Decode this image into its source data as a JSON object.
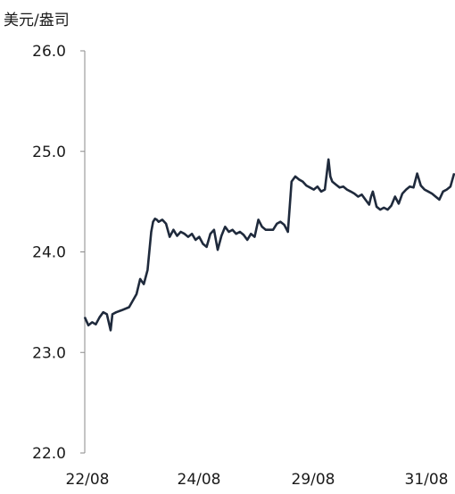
{
  "chart_data": {
    "type": "line",
    "title": "",
    "unit_label": "美元/盎司",
    "xlabel": "",
    "ylabel": "美元/盎司",
    "ylim": [
      22.0,
      26.0
    ],
    "y_ticks": [
      "26.0",
      "25.0",
      "24.0",
      "23.0",
      "22.0"
    ],
    "x_tick_labels": [
      "22/08",
      "24/08",
      "29/08",
      "31/08"
    ],
    "x_tick_positions": [
      0,
      0.33,
      0.67,
      1.0
    ],
    "grid": false,
    "line_color": "#1f2a3c",
    "series": [
      {
        "x": [
          0.0,
          0.01,
          0.02,
          0.03,
          0.04,
          0.05,
          0.06,
          0.07,
          0.075,
          0.085,
          0.1,
          0.12,
          0.14,
          0.15,
          0.16,
          0.17,
          0.18,
          0.185,
          0.19,
          0.195,
          0.2,
          0.21,
          0.22,
          0.23,
          0.24,
          0.25,
          0.26,
          0.27,
          0.28,
          0.29,
          0.3,
          0.31,
          0.32,
          0.33,
          0.34,
          0.35,
          0.36,
          0.37,
          0.38,
          0.39,
          0.4,
          0.41,
          0.42,
          0.43,
          0.44,
          0.45,
          0.46,
          0.47,
          0.48,
          0.49,
          0.5,
          0.51,
          0.52,
          0.53,
          0.54,
          0.55,
          0.56,
          0.57,
          0.58,
          0.59,
          0.6,
          0.61,
          0.62,
          0.63,
          0.64,
          0.65,
          0.66,
          0.665,
          0.67,
          0.68,
          0.69,
          0.7,
          0.71,
          0.72,
          0.73,
          0.74,
          0.75,
          0.76,
          0.77,
          0.775,
          0.78,
          0.79,
          0.8,
          0.81,
          0.82,
          0.83,
          0.84,
          0.85,
          0.86,
          0.87,
          0.88,
          0.89,
          0.9,
          0.91,
          0.92,
          0.93,
          0.94,
          0.95,
          0.96,
          0.97,
          0.98,
          0.99,
          1.0
        ],
        "values": [
          23.35,
          23.27,
          23.3,
          23.28,
          23.35,
          23.4,
          23.38,
          23.22,
          23.38,
          23.4,
          23.42,
          23.45,
          23.58,
          23.73,
          23.68,
          23.82,
          24.2,
          24.3,
          24.33,
          24.32,
          24.3,
          24.32,
          24.28,
          24.15,
          24.22,
          24.16,
          24.2,
          24.18,
          24.15,
          24.18,
          24.12,
          24.15,
          24.08,
          24.05,
          24.18,
          24.22,
          24.02,
          24.16,
          24.25,
          24.2,
          24.22,
          24.18,
          24.2,
          24.17,
          24.12,
          24.18,
          24.15,
          24.32,
          24.25,
          24.22,
          24.22,
          24.22,
          24.28,
          24.3,
          24.27,
          24.2,
          24.7,
          24.75,
          24.72,
          24.7,
          24.66,
          24.64,
          24.62,
          24.65,
          24.6,
          24.62,
          24.92,
          24.75,
          24.7,
          24.67,
          24.64,
          24.65,
          24.62,
          24.6,
          24.58,
          24.55,
          24.57,
          24.52,
          24.47,
          24.55,
          24.6,
          24.45,
          24.42,
          24.44,
          24.42,
          24.46,
          24.55,
          24.48,
          24.58,
          24.62,
          24.65,
          24.64,
          24.78,
          24.66,
          24.62,
          24.6,
          24.58,
          24.55,
          24.52,
          24.6,
          24.62,
          24.65,
          24.78
        ]
      }
    ]
  }
}
